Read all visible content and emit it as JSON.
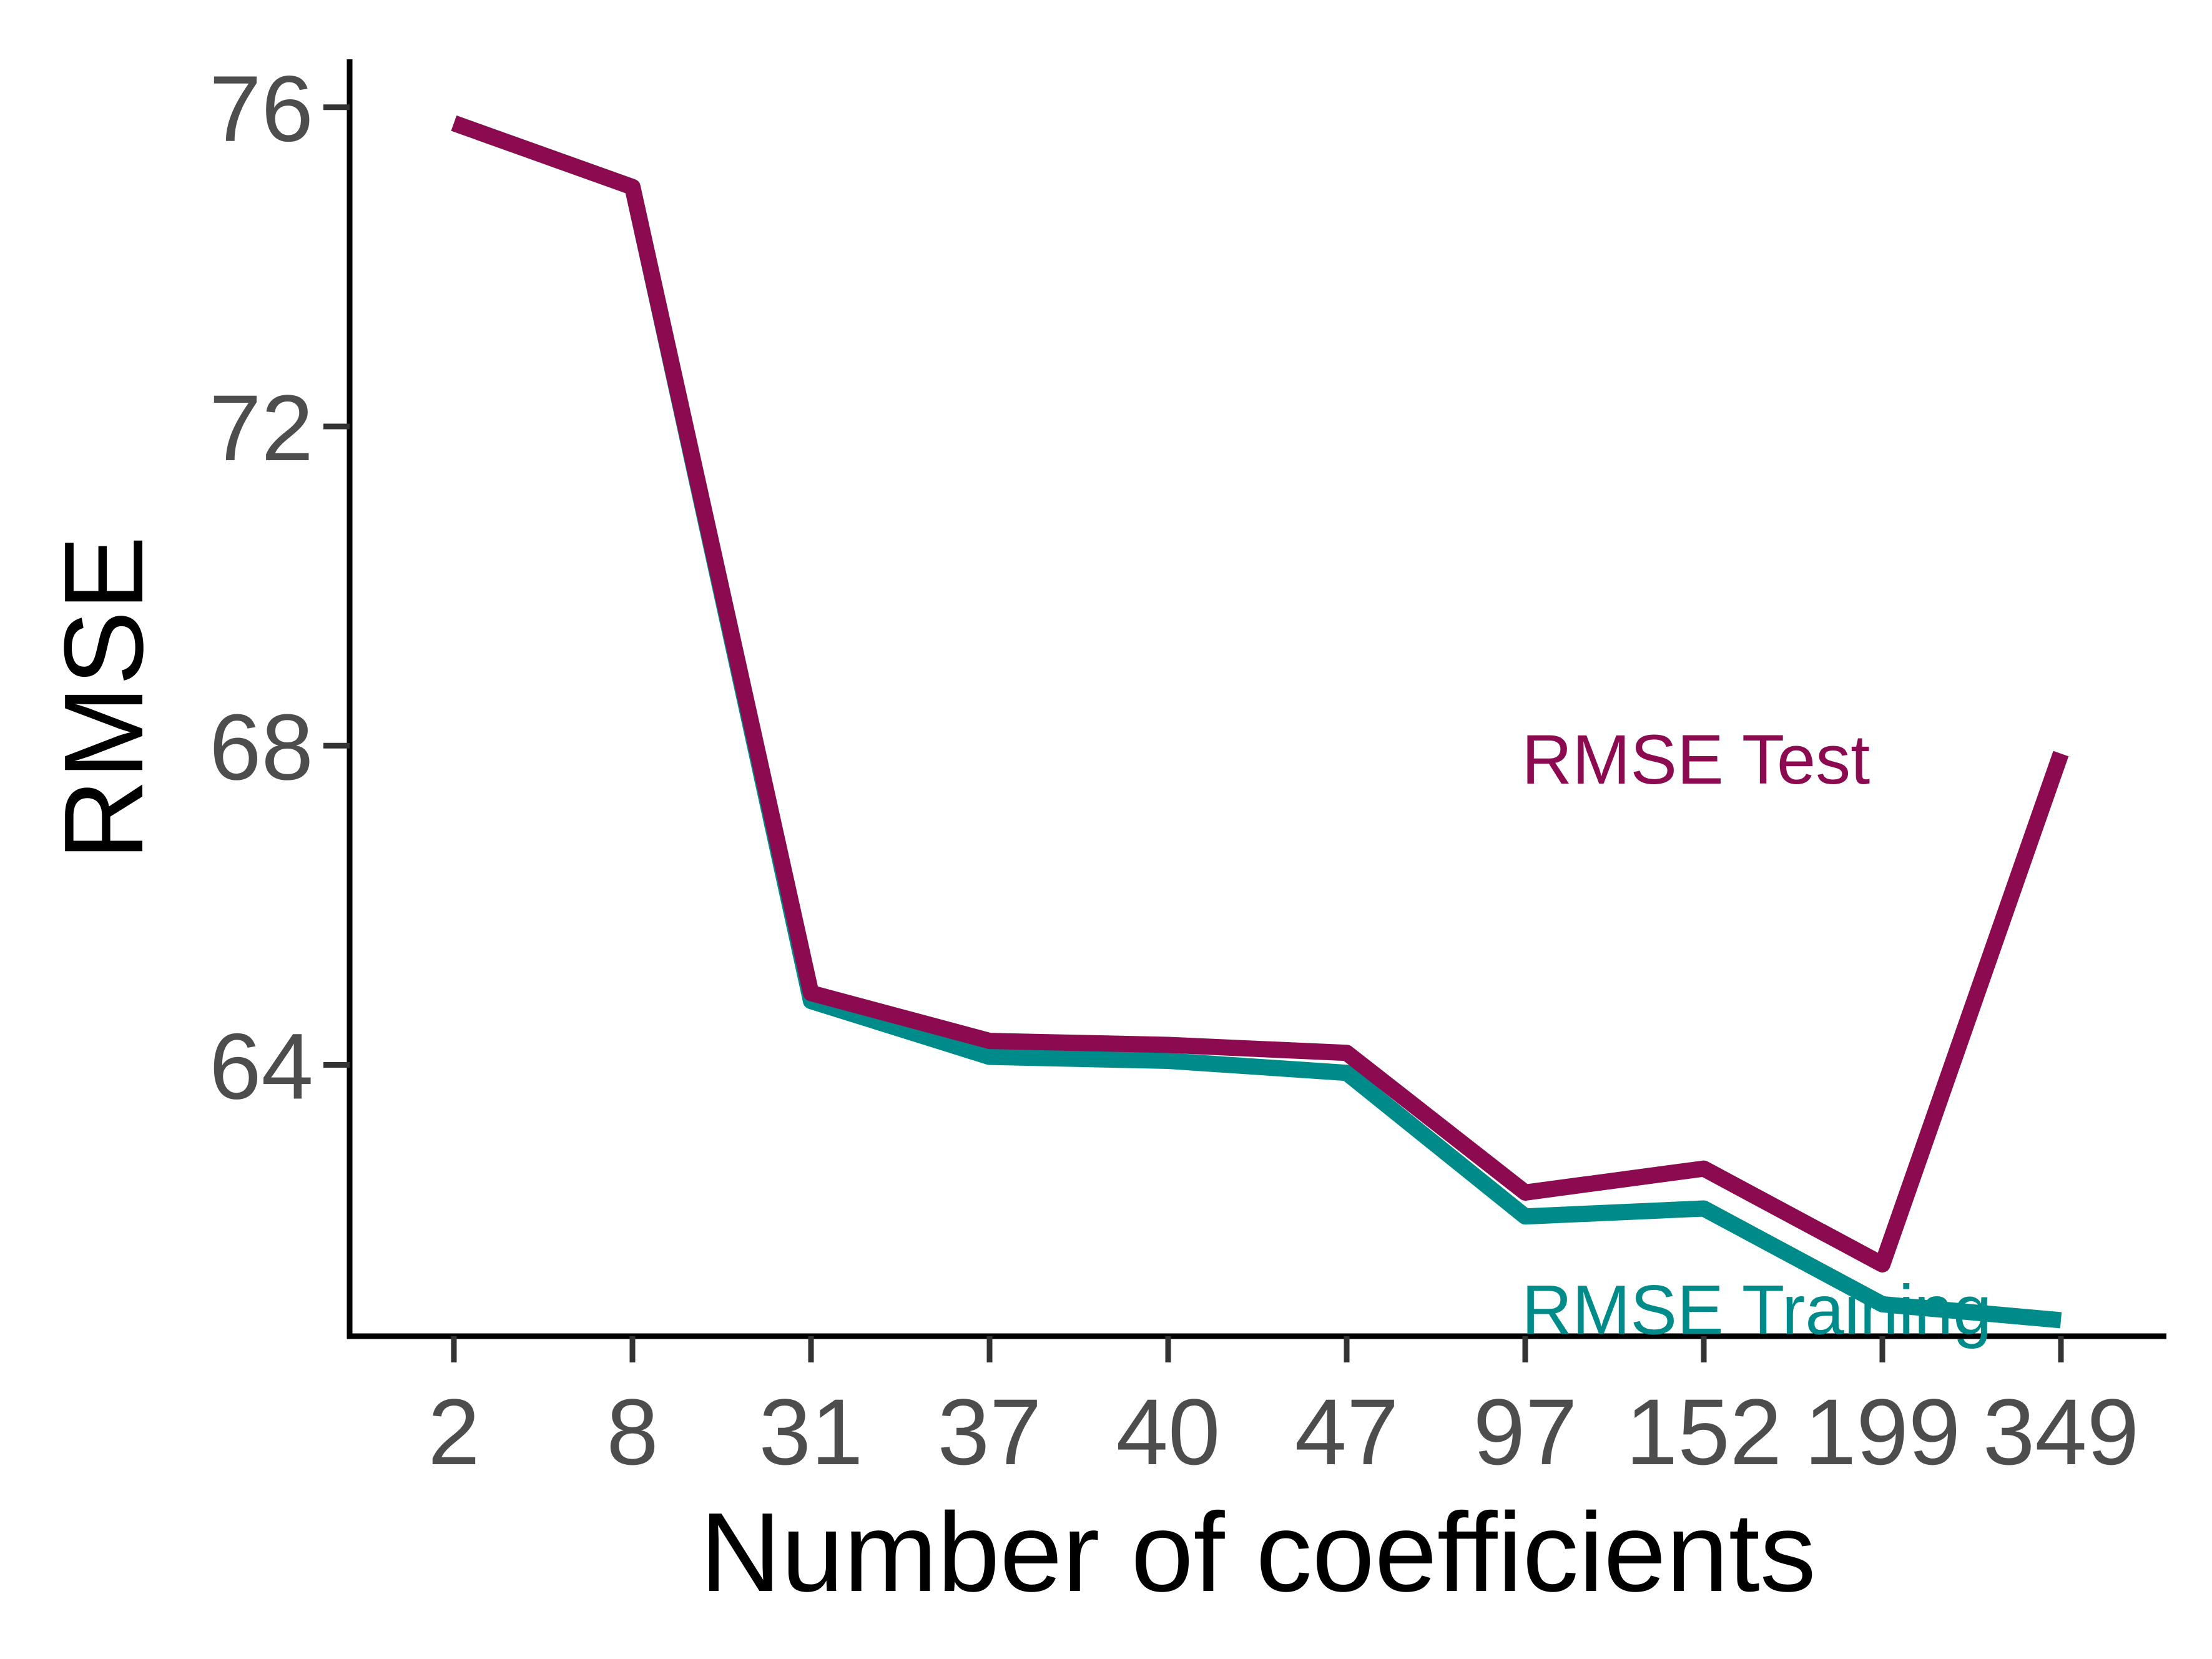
{
  "chart_data": {
    "type": "line",
    "title": "",
    "xlabel": "Number of coefficients",
    "ylabel": "RMSE",
    "categories": [
      "2",
      "8",
      "31",
      "37",
      "40",
      "47",
      "97",
      "152",
      "199",
      "349"
    ],
    "yticks": [
      "64",
      "68",
      "72",
      "76"
    ],
    "ylim": [
      60.6,
      76.6
    ],
    "grid": false,
    "legend": "none",
    "series": [
      {
        "name": "RMSE Training",
        "color": "#008B8B",
        "values": [
          75.8,
          75.0,
          64.8,
          64.1,
          64.05,
          63.9,
          62.1,
          62.2,
          61.0,
          60.8
        ]
      },
      {
        "name": "RMSE Test",
        "color": "#8B0A50",
        "values": [
          75.8,
          75.0,
          64.9,
          64.3,
          64.25,
          64.15,
          62.4,
          62.7,
          61.5,
          67.9
        ]
      }
    ],
    "annotations": [
      {
        "text": "RMSE Test",
        "color": "#8B0A50",
        "x_index": 5.7,
        "y": 67.8
      },
      {
        "text": "RMSE Training",
        "color": "#008B8B",
        "x_index": 5.7,
        "y": 60.9
      }
    ]
  }
}
